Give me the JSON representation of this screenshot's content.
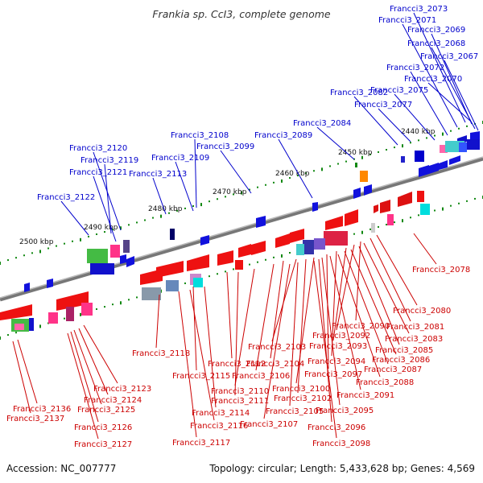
{
  "title": "Frankia sp. CcI3, complete genome",
  "footer": {
    "accession": "Accession: NC_007777",
    "summary": "Topology: circular; Length: 5,433,628 bp; Genes: 4,569"
  },
  "colors": {
    "plus": "#0000cc",
    "minus": "#cc0000",
    "backbone": "#888888",
    "tick": "#118811"
  },
  "kbp_labels": [
    "2440 kbp",
    "2450 kbp",
    "2460 kbp",
    "2470 kbp",
    "2480 kbp",
    "2490 kbp",
    "2500 kbp"
  ],
  "plus_labels": [
    "Francci3_2073",
    "Francci3_2071",
    "Francci3_2069",
    "Francci3_2068",
    "Francci3_2067",
    "Francci3_2072",
    "Francci3_2070",
    "Francci3_2075",
    "Francci3_2082",
    "Francci3_2077",
    "Francci3_2084",
    "Francci3_2108",
    "Francci3_2089",
    "Francci3_2099",
    "Francci3_2120",
    "Francci3_2119",
    "Francci3_2109",
    "Francci3_2121",
    "Francci3_2113",
    "Francci3_2122"
  ],
  "minus_labels": [
    "Francci3_2078",
    "Francci3_2080",
    "Francci3_2081",
    "Francci3_2090",
    "Francci3_2083",
    "Francci3_2092",
    "Francci3_2085",
    "Francci3_2093",
    "Francci3_2103",
    "Francci3_2118",
    "Francci3_2086",
    "Francci3_2094",
    "Francci3_2112",
    "Francci3_2104",
    "Francci3_2087",
    "Francci3_2115",
    "Francci3_2106",
    "Francci3_2097",
    "Francci3_2088",
    "Francci3_2123",
    "Francci3_2110",
    "Francci3_2100",
    "Francci3_2091",
    "Francci3_2124",
    "Francci3_2111",
    "Francci3_2102",
    "Francci3_2136",
    "Francci3_2125",
    "Francci3_2114",
    "Francci3_2105",
    "Francci3_2095",
    "Francci3_2137",
    "Francci3_2116",
    "Francci3_2107",
    "Francci3_2126",
    "Francci3_2096",
    "Francci3_2117",
    "Francci3_2127",
    "Francci3_2098"
  ]
}
